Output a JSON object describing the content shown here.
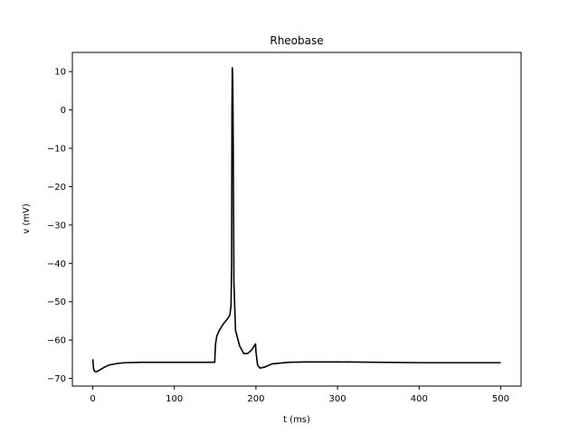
{
  "chart_data": {
    "type": "line",
    "title": "Rheobase",
    "xlabel": "t (ms)",
    "ylabel": "v (mV)",
    "xlim": [
      -25,
      525
    ],
    "ylim": [
      -72,
      15
    ],
    "xticks": [
      0,
      100,
      200,
      300,
      400,
      500
    ],
    "yticks": [
      10,
      0,
      -10,
      -20,
      -30,
      -40,
      -50,
      -60,
      -70
    ],
    "grid": false,
    "series": [
      {
        "color": "#000000",
        "x": [
          0,
          1,
          2,
          4,
          7,
          10,
          15,
          20,
          30,
          40,
          60,
          80,
          100,
          120,
          140,
          149.5,
          150,
          150.5,
          152,
          155,
          160,
          165,
          168,
          169.5,
          170.2,
          170.6,
          171,
          171.6,
          172.2,
          173,
          175,
          180,
          185,
          190,
          195,
          199.5,
          200,
          202,
          205,
          210,
          220,
          240,
          260,
          300,
          400,
          500
        ],
        "y": [
          -65,
          -67.5,
          -68.1,
          -68.3,
          -68.0,
          -67.6,
          -67.0,
          -66.5,
          -66.1,
          -65.9,
          -65.8,
          -65.8,
          -65.8,
          -65.8,
          -65.8,
          -65.8,
          -63,
          -61,
          -59,
          -57.5,
          -55.8,
          -54.5,
          -53.5,
          -51,
          -40,
          0,
          11,
          8,
          -10,
          -45,
          -57.5,
          -61.5,
          -63.5,
          -63.5,
          -62.5,
          -61,
          -63,
          -66.5,
          -67.3,
          -67.1,
          -66.2,
          -65.8,
          -65.7,
          -65.7,
          -65.9,
          -65.9
        ]
      }
    ]
  }
}
